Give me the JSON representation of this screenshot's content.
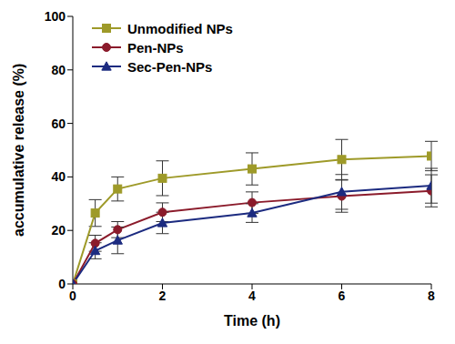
{
  "chart_data": {
    "type": "line",
    "x_label": "Time (h)",
    "y_label": "accumulative release (%)",
    "x": [
      0,
      0.5,
      1,
      2,
      4,
      6,
      8
    ],
    "xlim": [
      0,
      8
    ],
    "xticks": [
      0,
      2,
      4,
      6,
      8
    ],
    "ylim": [
      0,
      100
    ],
    "yticks": [
      0,
      20,
      40,
      60,
      80,
      100
    ],
    "grid": false,
    "legend": "upper left",
    "series": [
      {
        "name": "Unmodified NPs",
        "color": "#9e9a29",
        "marker": "square",
        "values": [
          0,
          26.5,
          35.5,
          39.5,
          43,
          46.5,
          47.8
        ],
        "errors": [
          0,
          5,
          4.5,
          6.5,
          6,
          7.5,
          5.5
        ]
      },
      {
        "name": "Pen-NPs",
        "color": "#8b1b2b",
        "marker": "circle",
        "values": [
          0,
          15.2,
          20.3,
          26.8,
          30.4,
          32.8,
          34.8
        ],
        "errors": [
          0,
          3,
          3,
          3.5,
          4,
          6,
          6
        ]
      },
      {
        "name": "Sec-Pen-NPs",
        "color": "#1c2b80",
        "marker": "triangle",
        "values": [
          0,
          12.4,
          16.3,
          22.8,
          26.5,
          34.4,
          36.7
        ],
        "errors": [
          0,
          3,
          5,
          4,
          3.5,
          6.5,
          6.5
        ]
      }
    ]
  }
}
